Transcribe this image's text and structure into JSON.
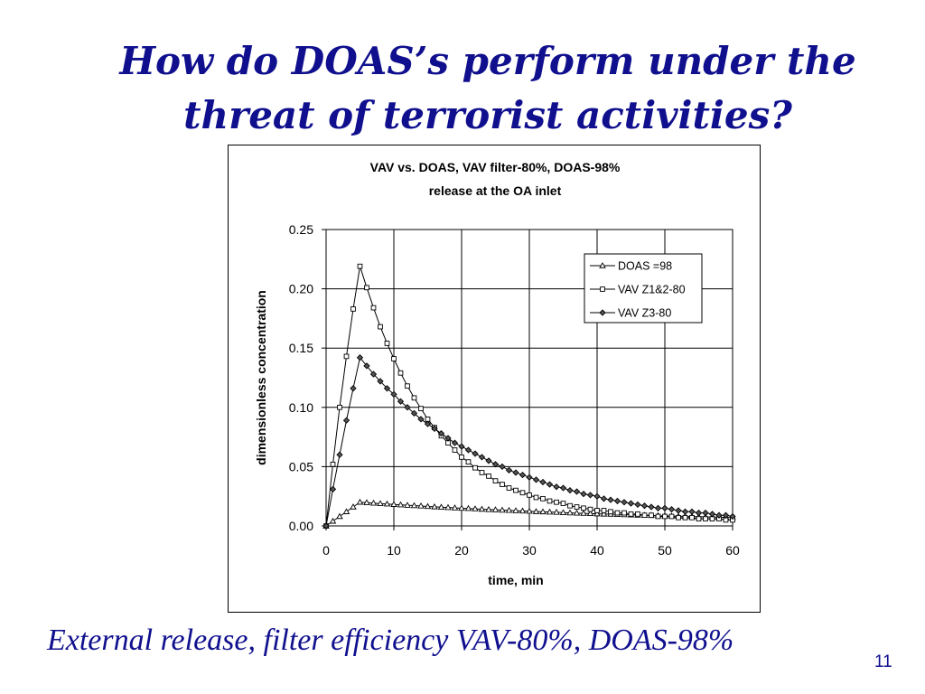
{
  "slide": {
    "title_line1": "How do DOAS’s perform under the",
    "title_line2": "threat of terrorist activities?",
    "caption": "External release, filter efficiency VAV-80%, DOAS-98%",
    "page_number": "11",
    "title_color": "#10108f"
  },
  "chart_data": {
    "type": "line",
    "title_line1": "VAV vs. DOAS, VAV filter-80%, DOAS-98%",
    "title_line2": "release at the OA inlet",
    "xlabel": "time, min",
    "ylabel": "dimensionless concentration",
    "xlim": [
      0,
      60
    ],
    "ylim": [
      0,
      0.25
    ],
    "x_ticks": [
      0,
      10,
      20,
      30,
      40,
      50,
      60
    ],
    "y_ticks": [
      "0.00",
      "0.05",
      "0.10",
      "0.15",
      "0.20",
      "0.25"
    ],
    "grid": true,
    "legend_position": "top-right",
    "series": [
      {
        "name": "DOAS =98",
        "marker": "triangle",
        "x": [
          0,
          1,
          2,
          3,
          4,
          5,
          6,
          7,
          8,
          9,
          10,
          11,
          12,
          13,
          14,
          15,
          16,
          17,
          18,
          19,
          20,
          21,
          22,
          23,
          24,
          25,
          26,
          27,
          28,
          29,
          30,
          31,
          32,
          33,
          34,
          35,
          36,
          37,
          38,
          39,
          40,
          41,
          42,
          43,
          44,
          45,
          46,
          47,
          48,
          49,
          50,
          51,
          52,
          53,
          54,
          55,
          56,
          57,
          58,
          59,
          60
        ],
        "y": [
          0,
          0.004,
          0.008,
          0.012,
          0.016,
          0.02,
          0.0196,
          0.0192,
          0.0188,
          0.0185,
          0.0181,
          0.0178,
          0.0174,
          0.0171,
          0.0168,
          0.0164,
          0.0161,
          0.0158,
          0.0155,
          0.0152,
          0.0149,
          0.0147,
          0.0144,
          0.0141,
          0.0138,
          0.0136,
          0.0133,
          0.0131,
          0.0128,
          0.0126,
          0.0124,
          0.0121,
          0.0119,
          0.0117,
          0.0115,
          0.0112,
          0.011,
          0.0108,
          0.0106,
          0.0104,
          0.0102,
          0.01,
          0.0099,
          0.0097,
          0.0095,
          0.0093,
          0.0091,
          0.009,
          0.0088,
          0.0086,
          0.0085,
          0.0083,
          0.0082,
          0.008,
          0.0079,
          0.0077,
          0.0076,
          0.0074,
          0.0073,
          0.0072,
          0.007
        ]
      },
      {
        "name": "VAV Z1&2-80",
        "marker": "square",
        "x": [
          0,
          1,
          2,
          3,
          4,
          5,
          6,
          7,
          8,
          9,
          10,
          11,
          12,
          13,
          14,
          15,
          16,
          17,
          18,
          19,
          20,
          21,
          22,
          23,
          24,
          25,
          26,
          27,
          28,
          29,
          30,
          31,
          32,
          33,
          34,
          35,
          36,
          37,
          38,
          39,
          40,
          41,
          42,
          43,
          44,
          45,
          46,
          47,
          48,
          49,
          50,
          51,
          52,
          53,
          54,
          55,
          56,
          57,
          58,
          59,
          60
        ],
        "y": [
          0,
          0.052,
          0.1,
          0.143,
          0.183,
          0.219,
          0.201,
          0.184,
          0.168,
          0.154,
          0.141,
          0.129,
          0.118,
          0.108,
          0.099,
          0.09,
          0.083,
          0.076,
          0.07,
          0.064,
          0.058,
          0.054,
          0.049,
          0.045,
          0.042,
          0.038,
          0.035,
          0.032,
          0.03,
          0.028,
          0.026,
          0.024,
          0.023,
          0.021,
          0.02,
          0.019,
          0.017,
          0.016,
          0.015,
          0.014,
          0.013,
          0.013,
          0.012,
          0.011,
          0.011,
          0.01,
          0.01,
          0.009,
          0.009,
          0.008,
          0.008,
          0.008,
          0.007,
          0.007,
          0.007,
          0.006,
          0.006,
          0.006,
          0.006,
          0.005,
          0.005
        ]
      },
      {
        "name": "VAV Z3-80",
        "marker": "diamond",
        "x": [
          0,
          1,
          2,
          3,
          4,
          5,
          6,
          7,
          8,
          9,
          10,
          11,
          12,
          13,
          14,
          15,
          16,
          17,
          18,
          19,
          20,
          21,
          22,
          23,
          24,
          25,
          26,
          27,
          28,
          29,
          30,
          31,
          32,
          33,
          34,
          35,
          36,
          37,
          38,
          39,
          40,
          41,
          42,
          43,
          44,
          45,
          46,
          47,
          48,
          49,
          50,
          51,
          52,
          53,
          54,
          55,
          56,
          57,
          58,
          59,
          60
        ],
        "y": [
          0,
          0.031,
          0.06,
          0.089,
          0.116,
          0.142,
          0.135,
          0.128,
          0.122,
          0.116,
          0.111,
          0.105,
          0.1,
          0.095,
          0.09,
          0.086,
          0.082,
          0.078,
          0.074,
          0.07,
          0.067,
          0.064,
          0.061,
          0.058,
          0.055,
          0.052,
          0.05,
          0.047,
          0.045,
          0.043,
          0.041,
          0.039,
          0.037,
          0.035,
          0.033,
          0.032,
          0.03,
          0.029,
          0.027,
          0.026,
          0.025,
          0.023,
          0.022,
          0.021,
          0.02,
          0.019,
          0.018,
          0.017,
          0.016,
          0.015,
          0.015,
          0.014,
          0.013,
          0.012,
          0.012,
          0.011,
          0.011,
          0.01,
          0.009,
          0.009,
          0.008
        ]
      }
    ]
  }
}
